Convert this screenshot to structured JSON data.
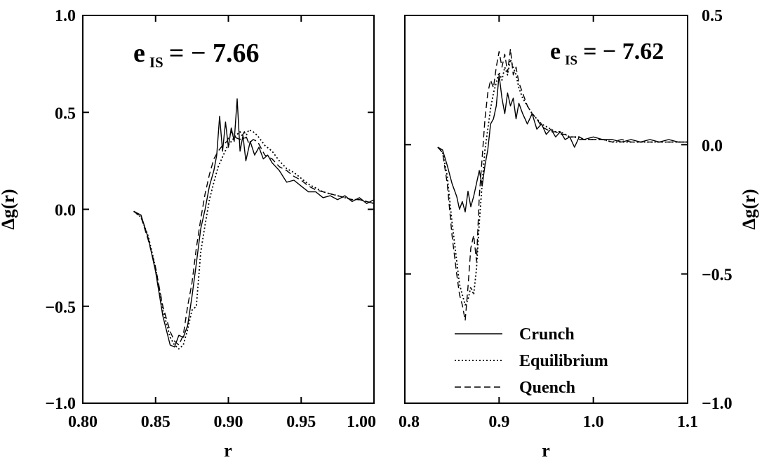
{
  "chart_data": [
    {
      "type": "line",
      "xlabel": "r",
      "ylabel": "Δg(r)",
      "xlim": [
        0.8,
        1.0
      ],
      "ylim": [
        -1.0,
        1.0
      ],
      "xticks": [
        0.8,
        0.85,
        0.9,
        0.95,
        1.0
      ],
      "xtick_labels": [
        "0.80",
        "0.85",
        "0.90",
        "0.95",
        "1.00"
      ],
      "yticks": [
        -1.0,
        -0.5,
        0.0,
        0.5,
        1.0
      ],
      "ytick_labels": [
        "−1.0",
        "−0.5",
        "0.0",
        "0.5",
        "1.0"
      ],
      "annotation": {
        "main": "e",
        "sub": "IS",
        "value": "= − 7.66"
      },
      "grid": false,
      "series": [
        {
          "name": "Crunch",
          "style": "solid",
          "x": [
            0.835,
            0.84,
            0.845,
            0.85,
            0.855,
            0.86,
            0.863,
            0.866,
            0.869,
            0.872,
            0.875,
            0.878,
            0.881,
            0.884,
            0.887,
            0.89,
            0.892,
            0.894,
            0.896,
            0.898,
            0.9,
            0.902,
            0.904,
            0.906,
            0.908,
            0.91,
            0.912,
            0.915,
            0.918,
            0.921,
            0.924,
            0.927,
            0.93,
            0.935,
            0.94,
            0.945,
            0.95,
            0.955,
            0.96,
            0.965,
            0.97,
            0.975,
            0.98,
            0.985,
            0.99,
            0.995,
            1.0
          ],
          "y": [
            -0.01,
            -0.03,
            -0.15,
            -0.32,
            -0.55,
            -0.7,
            -0.71,
            -0.65,
            -0.66,
            -0.6,
            -0.45,
            -0.28,
            -0.1,
            0.0,
            0.12,
            0.2,
            0.28,
            0.48,
            0.3,
            0.45,
            0.32,
            0.42,
            0.35,
            0.57,
            0.3,
            0.38,
            0.25,
            0.35,
            0.28,
            0.32,
            0.26,
            0.28,
            0.24,
            0.2,
            0.14,
            0.15,
            0.12,
            0.09,
            0.09,
            0.06,
            0.07,
            0.05,
            0.07,
            0.04,
            0.06,
            0.03,
            0.05
          ]
        },
        {
          "name": "Equilibrium",
          "style": "dotted",
          "x": [
            0.835,
            0.84,
            0.845,
            0.85,
            0.855,
            0.86,
            0.863,
            0.866,
            0.869,
            0.872,
            0.875,
            0.878,
            0.881,
            0.884,
            0.887,
            0.89,
            0.893,
            0.896,
            0.899,
            0.902,
            0.905,
            0.908,
            0.911,
            0.914,
            0.917,
            0.92,
            0.925,
            0.93,
            0.935,
            0.94,
            0.945,
            0.95,
            0.955,
            0.96,
            0.965,
            0.97,
            0.975,
            0.98,
            0.985,
            0.99,
            0.995,
            1.0
          ],
          "y": [
            -0.01,
            -0.04,
            -0.14,
            -0.3,
            -0.52,
            -0.66,
            -0.7,
            -0.72,
            -0.7,
            -0.62,
            -0.52,
            -0.5,
            -0.22,
            -0.08,
            0.05,
            0.14,
            0.22,
            0.27,
            0.32,
            0.35,
            0.38,
            0.4,
            0.36,
            0.41,
            0.4,
            0.38,
            0.33,
            0.3,
            0.25,
            0.21,
            0.19,
            0.16,
            0.13,
            0.11,
            0.09,
            0.08,
            0.07,
            0.06,
            0.05,
            0.05,
            0.04,
            0.03
          ]
        },
        {
          "name": "Quench",
          "style": "dashed",
          "x": [
            0.835,
            0.84,
            0.845,
            0.85,
            0.855,
            0.86,
            0.863,
            0.866,
            0.869,
            0.872,
            0.875,
            0.878,
            0.881,
            0.884,
            0.887,
            0.89,
            0.893,
            0.896,
            0.899,
            0.902,
            0.905,
            0.908,
            0.911,
            0.914,
            0.917,
            0.92,
            0.925,
            0.93,
            0.935,
            0.94,
            0.945,
            0.95,
            0.955,
            0.96,
            0.965,
            0.97,
            0.975,
            0.98,
            0.985,
            0.99,
            0.995,
            1.0
          ],
          "y": [
            -0.01,
            -0.04,
            -0.16,
            -0.3,
            -0.5,
            -0.63,
            -0.68,
            -0.7,
            -0.65,
            -0.5,
            -0.38,
            -0.2,
            -0.05,
            0.08,
            0.18,
            0.26,
            0.3,
            0.33,
            0.35,
            0.4,
            0.37,
            0.36,
            0.4,
            0.34,
            0.36,
            0.35,
            0.28,
            0.26,
            0.22,
            0.2,
            0.17,
            0.15,
            0.12,
            0.1,
            0.09,
            0.08,
            0.07,
            0.06,
            0.05,
            0.05,
            0.04,
            0.03
          ]
        }
      ]
    },
    {
      "type": "line",
      "xlabel": "r",
      "ylabel": "Δg(r)",
      "xlim": [
        0.8,
        1.1
      ],
      "ylim": [
        -1.0,
        0.5
      ],
      "xticks": [
        0.8,
        0.9,
        1.0,
        1.1
      ],
      "xtick_labels": [
        "0.8",
        "0.9",
        "1.0",
        "1.1"
      ],
      "yticks": [
        -1.0,
        -0.5,
        0.0,
        0.5
      ],
      "ytick_labels": [
        "−1.0",
        "−0.5",
        "0.0",
        "0.5"
      ],
      "annotation": {
        "main": "e",
        "sub": "IS",
        "value": "= − 7.62"
      },
      "grid": false,
      "legend": {
        "placement": "bottom-left",
        "entries": [
          "Crunch",
          "Equilibrium",
          "Quench"
        ]
      },
      "series": [
        {
          "name": "Crunch",
          "style": "solid",
          "x": [
            0.835,
            0.84,
            0.845,
            0.85,
            0.855,
            0.858,
            0.861,
            0.864,
            0.867,
            0.87,
            0.873,
            0.876,
            0.879,
            0.882,
            0.885,
            0.888,
            0.891,
            0.894,
            0.897,
            0.9,
            0.903,
            0.906,
            0.909,
            0.912,
            0.915,
            0.918,
            0.921,
            0.925,
            0.93,
            0.935,
            0.94,
            0.945,
            0.95,
            0.955,
            0.96,
            0.965,
            0.97,
            0.975,
            0.98,
            0.985,
            0.99,
            1.0,
            1.01,
            1.02,
            1.03,
            1.04,
            1.05,
            1.06,
            1.07,
            1.08,
            1.09,
            1.1
          ],
          "y": [
            -0.01,
            -0.02,
            -0.08,
            -0.15,
            -0.2,
            -0.25,
            -0.22,
            -0.26,
            -0.18,
            -0.24,
            -0.2,
            -0.15,
            -0.1,
            -0.16,
            -0.08,
            -0.02,
            0.08,
            0.1,
            0.15,
            0.27,
            0.18,
            0.12,
            0.2,
            0.15,
            0.18,
            0.1,
            0.16,
            0.12,
            0.08,
            0.12,
            0.06,
            0.08,
            0.04,
            0.06,
            0.03,
            0.05,
            0.02,
            0.03,
            -0.01,
            0.03,
            0.02,
            0.03,
            0.02,
            0.02,
            0.01,
            0.02,
            0.01,
            0.02,
            0.01,
            0.02,
            0.01,
            0.01
          ]
        },
        {
          "name": "Equilibrium",
          "style": "dotted",
          "x": [
            0.835,
            0.84,
            0.845,
            0.85,
            0.855,
            0.858,
            0.861,
            0.864,
            0.867,
            0.87,
            0.873,
            0.876,
            0.879,
            0.882,
            0.885,
            0.888,
            0.891,
            0.894,
            0.897,
            0.9,
            0.903,
            0.906,
            0.909,
            0.912,
            0.915,
            0.918,
            0.921,
            0.925,
            0.93,
            0.935,
            0.94,
            0.945,
            0.95,
            0.955,
            0.96,
            0.965,
            0.97,
            0.975,
            0.98,
            0.985,
            0.99,
            1.0,
            1.01,
            1.02,
            1.03,
            1.04,
            1.05,
            1.06,
            1.07,
            1.08,
            1.09,
            1.1
          ],
          "y": [
            -0.01,
            -0.03,
            -0.12,
            -0.3,
            -0.45,
            -0.54,
            -0.58,
            -0.62,
            -0.6,
            -0.55,
            -0.58,
            -0.48,
            -0.3,
            -0.15,
            -0.02,
            0.06,
            0.14,
            0.2,
            0.24,
            0.28,
            0.25,
            0.3,
            0.27,
            0.33,
            0.3,
            0.27,
            0.22,
            0.18,
            0.15,
            0.12,
            0.1,
            0.08,
            0.07,
            0.06,
            0.05,
            0.05,
            0.04,
            0.03,
            0.03,
            0.03,
            0.02,
            0.02,
            0.02,
            0.01,
            0.01,
            0.01,
            0.01,
            0.01,
            0.01,
            0.01,
            0.01,
            0.01
          ]
        },
        {
          "name": "Quench",
          "style": "dashed",
          "x": [
            0.835,
            0.84,
            0.845,
            0.85,
            0.855,
            0.858,
            0.861,
            0.864,
            0.867,
            0.87,
            0.873,
            0.876,
            0.879,
            0.882,
            0.885,
            0.888,
            0.891,
            0.894,
            0.897,
            0.9,
            0.903,
            0.906,
            0.909,
            0.912,
            0.915,
            0.918,
            0.921,
            0.925,
            0.93,
            0.935,
            0.94,
            0.945,
            0.95,
            0.955,
            0.96,
            0.965,
            0.97,
            0.975,
            0.98,
            0.985,
            0.99,
            1.0,
            1.01,
            1.02,
            1.03,
            1.04,
            1.05,
            1.06,
            1.07,
            1.08,
            1.09,
            1.1
          ],
          "y": [
            -0.01,
            -0.03,
            -0.15,
            -0.35,
            -0.5,
            -0.58,
            -0.62,
            -0.68,
            -0.55,
            -0.4,
            -0.35,
            -0.45,
            -0.2,
            -0.05,
            0.1,
            0.2,
            0.25,
            0.22,
            0.3,
            0.36,
            0.3,
            0.35,
            0.28,
            0.37,
            0.27,
            0.3,
            0.24,
            0.2,
            0.15,
            0.12,
            0.1,
            0.07,
            0.06,
            0.05,
            0.05,
            0.04,
            0.04,
            0.03,
            0.03,
            0.02,
            0.02,
            0.02,
            0.02,
            0.01,
            0.02,
            0.01,
            0.01,
            0.01,
            0.01,
            0.01,
            0.01,
            0.01
          ]
        }
      ]
    }
  ]
}
